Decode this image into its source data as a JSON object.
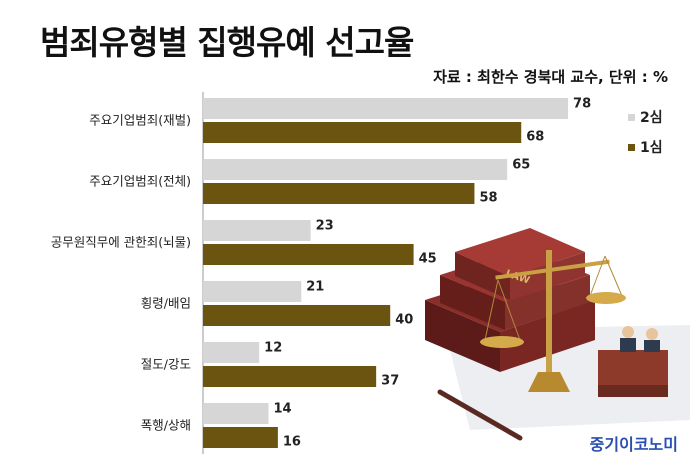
{
  "title": "범죄유형별 집행유예 선고율",
  "source": "자료 : 최한수 경북대 교수, 단위 : %",
  "brand": "중기이코노미",
  "chart_data": {
    "type": "bar",
    "orientation": "horizontal",
    "title": "범죄유형별 집행유예 선고율",
    "categories": [
      "주요기업범죄(재벌)",
      "주요기업범죄(전체)",
      "공무원직무에 관한죄(뇌물)",
      "횡령/배임",
      "절도/강도",
      "폭행/상해"
    ],
    "series": [
      {
        "name": "2심",
        "values": [
          78,
          65,
          23,
          21,
          12,
          14
        ],
        "color": "#d6d6d6"
      },
      {
        "name": "1심",
        "values": [
          68,
          58,
          45,
          40,
          37,
          16
        ],
        "color": "#6b5410"
      }
    ],
    "xlim": [
      0,
      100
    ],
    "grid": false,
    "legend": "top-right"
  }
}
